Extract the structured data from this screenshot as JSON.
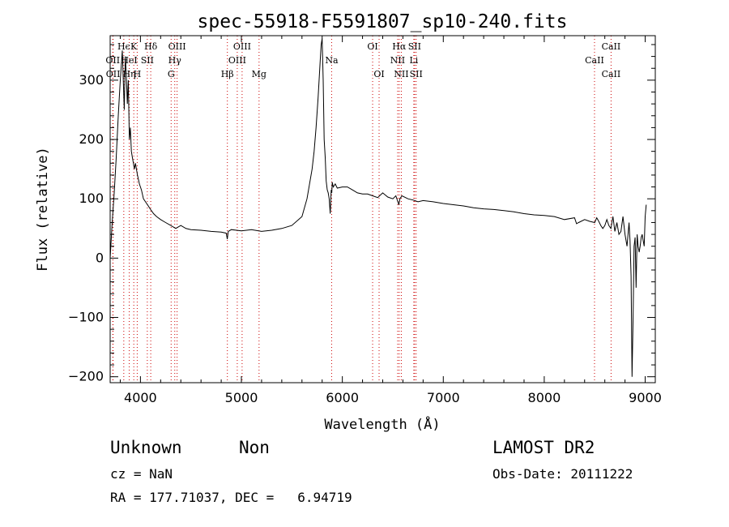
{
  "chart_data": {
    "type": "line",
    "title": "spec-55918-F5591807_sp10-240.fits",
    "xlabel": "Wavelength (Å)",
    "ylabel": "Flux (relative)",
    "xlim": [
      3700,
      9100
    ],
    "ylim": [
      -210,
      375
    ],
    "x_ticks": [
      4000,
      5000,
      6000,
      7000,
      8000,
      9000
    ],
    "y_ticks": [
      -200,
      -100,
      0,
      100,
      200,
      300
    ],
    "grid": false,
    "series": [
      {
        "color": "#000000",
        "x": [
          3700,
          3720,
          3740,
          3760,
          3780,
          3800,
          3820,
          3840,
          3850,
          3860,
          3870,
          3880,
          3890,
          3900,
          3910,
          3920,
          3930,
          3940,
          3950,
          3970,
          3990,
          4010,
          4030,
          4050,
          4070,
          4100,
          4130,
          4160,
          4200,
          4250,
          4300,
          4350,
          4400,
          4450,
          4500,
          4600,
          4700,
          4800,
          4850,
          4860,
          4870,
          4900,
          5000,
          5100,
          5200,
          5300,
          5400,
          5500,
          5600,
          5650,
          5700,
          5720,
          5740,
          5760,
          5780,
          5790,
          5800,
          5810,
          5820,
          5830,
          5840,
          5850,
          5860,
          5870,
          5880,
          5890,
          5895,
          5900,
          5910,
          5930,
          5950,
          6000,
          6050,
          6100,
          6150,
          6200,
          6250,
          6300,
          6350,
          6400,
          6450,
          6500,
          6530,
          6560,
          6570,
          6590,
          6650,
          6700,
          6750,
          6800,
          6900,
          7000,
          7100,
          7200,
          7300,
          7400,
          7500,
          7600,
          7700,
          7800,
          7900,
          8000,
          8100,
          8200,
          8300,
          8320,
          8340,
          8400,
          8450,
          8500,
          8520,
          8540,
          8560,
          8580,
          8600,
          8620,
          8640,
          8660,
          8680,
          8700,
          8720,
          8740,
          8760,
          8780,
          8800,
          8820,
          8840,
          8850,
          8860,
          8870,
          8880,
          8890,
          8900,
          8910,
          8920,
          8930,
          8940,
          8950,
          8960,
          8970,
          8980,
          8990,
          9000,
          9010
        ],
        "y": [
          0,
          60,
          110,
          170,
          240,
          300,
          350,
          250,
          340,
          310,
          260,
          300,
          200,
          220,
          180,
          170,
          160,
          150,
          160,
          140,
          125,
          115,
          100,
          95,
          90,
          82,
          75,
          70,
          65,
          60,
          55,
          50,
          55,
          50,
          48,
          47,
          45,
          44,
          42,
          32,
          45,
          48,
          46,
          48,
          45,
          47,
          50,
          55,
          70,
          100,
          150,
          180,
          220,
          270,
          330,
          360,
          370,
          300,
          200,
          170,
          130,
          115,
          110,
          100,
          75,
          115,
          110,
          128,
          120,
          125,
          118,
          120,
          120,
          115,
          110,
          108,
          108,
          105,
          102,
          110,
          103,
          100,
          105,
          90,
          100,
          105,
          100,
          98,
          95,
          97,
          95,
          92,
          90,
          88,
          85,
          83,
          82,
          80,
          78,
          75,
          73,
          72,
          70,
          65,
          68,
          58,
          60,
          65,
          62,
          60,
          68,
          62,
          55,
          50,
          55,
          65,
          55,
          50,
          70,
          45,
          60,
          40,
          45,
          70,
          40,
          20,
          60,
          30,
          -30,
          -200,
          -100,
          20,
          35,
          -50,
          40,
          20,
          10,
          20,
          35,
          40,
          30,
          20,
          70,
          90
        ]
      }
    ],
    "line_labels": [
      {
        "text": "Hϵ",
        "wl": 3835,
        "row": 0
      },
      {
        "text": "OII",
        "wl": 3726,
        "row": 1
      },
      {
        "text": "OII",
        "wl": 3729,
        "row": 2
      },
      {
        "text": "K",
        "wl": 3934,
        "row": 0
      },
      {
        "text": "HeI",
        "wl": 3889,
        "row": 1
      },
      {
        "text": "Hη",
        "wl": 3889,
        "row": 2
      },
      {
        "text": "H",
        "wl": 3968,
        "row": 2
      },
      {
        "text": "SII",
        "wl": 4068,
        "row": 1
      },
      {
        "text": "Hδ",
        "wl": 4102,
        "row": 0
      },
      {
        "text": "OIII",
        "wl": 4363,
        "row": 0
      },
      {
        "text": "Hγ",
        "wl": 4340,
        "row": 1
      },
      {
        "text": "G",
        "wl": 4304,
        "row": 2
      },
      {
        "text": "Hβ",
        "wl": 4861,
        "row": 2
      },
      {
        "text": "OIII",
        "wl": 5007,
        "row": 0
      },
      {
        "text": "OIII",
        "wl": 4959,
        "row": 1
      },
      {
        "text": "Mg",
        "wl": 5175,
        "row": 2
      },
      {
        "text": "Na",
        "wl": 5894,
        "row": 1
      },
      {
        "text": "OI",
        "wl": 6300,
        "row": 0
      },
      {
        "text": "OI",
        "wl": 6364,
        "row": 2
      },
      {
        "text": "Hα",
        "wl": 6563,
        "row": 0
      },
      {
        "text": "SII",
        "wl": 6716,
        "row": 0
      },
      {
        "text": "NII",
        "wl": 6548,
        "row": 1
      },
      {
        "text": "Li",
        "wl": 6708,
        "row": 1
      },
      {
        "text": "NII",
        "wl": 6584,
        "row": 2
      },
      {
        "text": "SII",
        "wl": 6731,
        "row": 2
      },
      {
        "text": "CaII",
        "wl": 8662,
        "row": 0
      },
      {
        "text": "CaII",
        "wl": 8498,
        "row": 1
      },
      {
        "text": "CaII",
        "wl": 8662,
        "row": 2
      }
    ],
    "line_marker_color": "#cc0000"
  },
  "info": {
    "class_label": "Unknown",
    "subclass_label": "Non",
    "survey": "LAMOST DR2",
    "cz": "cz = NaN",
    "obs_date": "Obs-Date: 20111222",
    "radec": "RA = 177.71037, DEC =   6.94719"
  }
}
